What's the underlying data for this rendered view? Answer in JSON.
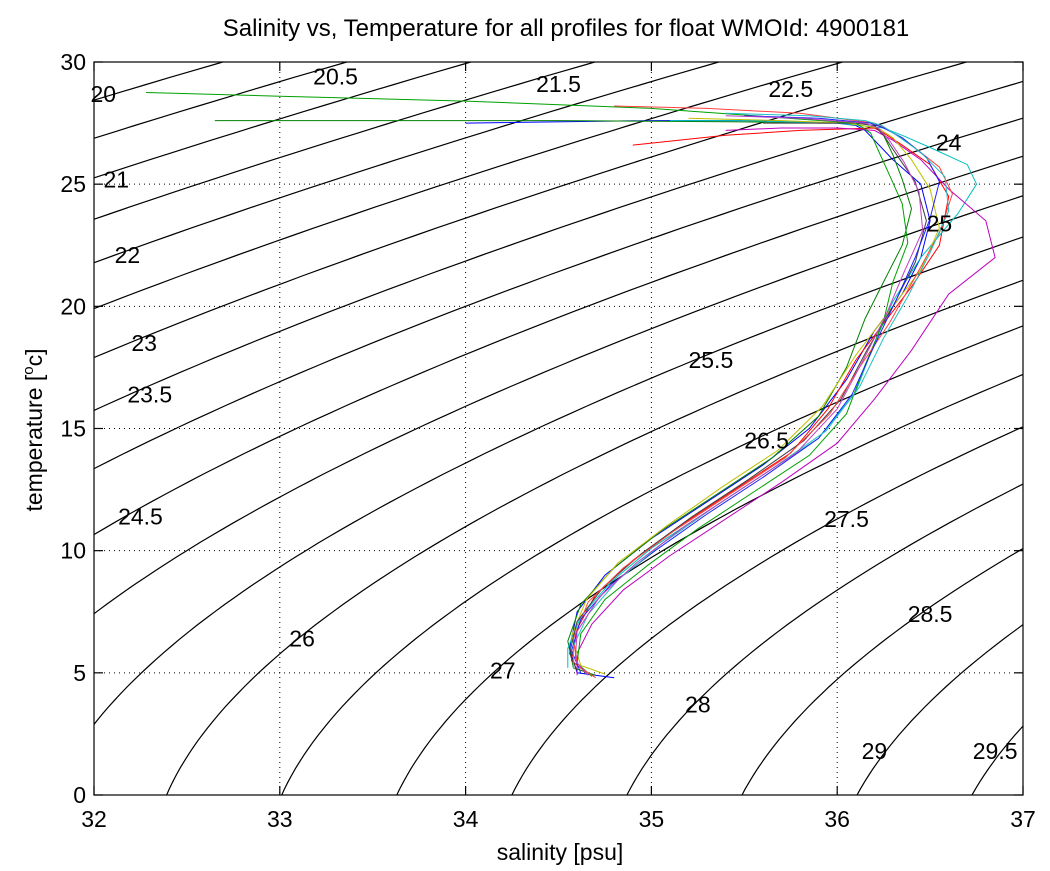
{
  "chart_data": {
    "type": "line",
    "title": "Salinity vs, Temperature for all profiles for float WMOId: 4900181",
    "xlabel": "salinity [psu]",
    "ylabel_main": "temperature [",
    "ylabel_sup": "o",
    "ylabel_end": "c]",
    "xlim": [
      32,
      37
    ],
    "ylim": [
      0,
      30
    ],
    "xticks": [
      32,
      33,
      34,
      35,
      36,
      37
    ],
    "yticks": [
      0,
      5,
      10,
      15,
      20,
      25,
      30
    ],
    "grid": true,
    "contours": {
      "levels": [
        20,
        20.5,
        21,
        21.5,
        22,
        22.5,
        23,
        23.5,
        24,
        24.5,
        25,
        25.5,
        26,
        26.5,
        27,
        27.5,
        28,
        28.5,
        29,
        29.5
      ],
      "labels": [
        {
          "text": "20",
          "s": 32.05,
          "t": 28.7
        },
        {
          "text": "20.5",
          "s": 33.3,
          "t": 29.4
        },
        {
          "text": "21",
          "s": 32.12,
          "t": 25.2
        },
        {
          "text": "21.5",
          "s": 34.5,
          "t": 29.1
        },
        {
          "text": "22",
          "s": 32.18,
          "t": 22.1
        },
        {
          "text": "22.5",
          "s": 35.75,
          "t": 28.9
        },
        {
          "text": "23",
          "s": 32.27,
          "t": 18.5
        },
        {
          "text": "23.5",
          "s": 32.3,
          "t": 16.4
        },
        {
          "text": "24",
          "s": 36.6,
          "t": 26.7
        },
        {
          "text": "24.5",
          "s": 32.25,
          "t": 11.4
        },
        {
          "text": "25",
          "s": 36.55,
          "t": 23.4
        },
        {
          "text": "25.5",
          "s": 35.32,
          "t": 17.8
        },
        {
          "text": "26",
          "s": 33.12,
          "t": 6.4
        },
        {
          "text": "26.5",
          "s": 35.62,
          "t": 14.5
        },
        {
          "text": "27",
          "s": 34.2,
          "t": 5.1
        },
        {
          "text": "27.5",
          "s": 36.05,
          "t": 11.3
        },
        {
          "text": "28",
          "s": 35.25,
          "t": 3.7
        },
        {
          "text": "28.5",
          "s": 36.5,
          "t": 7.4
        },
        {
          "text": "29",
          "s": 36.2,
          "t": 1.8
        },
        {
          "text": "29.5",
          "s": 36.85,
          "t": 1.8
        }
      ]
    },
    "series": [
      {
        "color": "#0000ff",
        "s": [
          34.8,
          34.6,
          34.56,
          34.6,
          34.75,
          35.0,
          35.3,
          35.6,
          35.85,
          36.05,
          36.2,
          36.35,
          36.45,
          36.5,
          36.45,
          36.3,
          36.2,
          36.15,
          36.1,
          36.0,
          35.9,
          35.6,
          35.0,
          34.0
        ],
        "t": [
          4.8,
          5.0,
          6.0,
          7.5,
          9.0,
          10.5,
          12.0,
          13.5,
          15.0,
          17.0,
          19.0,
          20.5,
          22.0,
          23.5,
          25.0,
          26.0,
          26.8,
          27.2,
          27.4,
          27.5,
          27.5,
          27.6,
          27.6,
          27.5
        ]
      },
      {
        "color": "#008000",
        "s": [
          34.7,
          34.58,
          34.55,
          34.62,
          34.8,
          35.05,
          35.35,
          35.65,
          35.9,
          36.05,
          36.15,
          36.25,
          36.35,
          36.4,
          36.35,
          36.3,
          36.25,
          36.2,
          36.1,
          35.5,
          34.5,
          33.5,
          32.65
        ],
        "t": [
          4.9,
          5.2,
          6.3,
          7.8,
          9.3,
          10.8,
          12.3,
          13.8,
          15.5,
          17.5,
          19.5,
          21.0,
          22.5,
          24.0,
          25.2,
          26.2,
          27.0,
          27.4,
          27.5,
          27.55,
          27.6,
          27.6,
          27.6
        ]
      },
      {
        "color": "#ff0000",
        "s": [
          34.65,
          34.57,
          34.6,
          34.7,
          34.9,
          35.15,
          35.45,
          35.75,
          35.95,
          36.1,
          36.25,
          36.4,
          36.55,
          36.6,
          36.5,
          36.35,
          36.25,
          36.2,
          35.8,
          35.4,
          34.9
        ],
        "t": [
          5.0,
          5.5,
          6.8,
          8.2,
          9.6,
          11.0,
          12.5,
          14.0,
          15.8,
          17.8,
          19.3,
          20.8,
          22.5,
          24.5,
          25.8,
          26.6,
          27.1,
          27.3,
          27.2,
          27.0,
          26.6
        ]
      },
      {
        "color": "#00bfbf",
        "s": [
          34.55,
          34.55,
          34.62,
          34.78,
          35.0,
          35.3,
          35.6,
          35.9,
          36.1,
          36.2,
          36.3,
          36.45,
          36.65,
          36.75,
          36.7,
          36.5,
          36.35,
          36.25,
          36.0,
          35.5,
          35.1
        ],
        "t": [
          5.2,
          6.0,
          7.3,
          8.7,
          10.1,
          11.6,
          13.1,
          14.6,
          16.5,
          18.5,
          20.2,
          22.0,
          23.8,
          25.0,
          25.8,
          26.5,
          27.0,
          27.3,
          27.5,
          27.6,
          27.6
        ]
      },
      {
        "color": "#bf00bf",
        "s": [
          34.6,
          34.6,
          34.68,
          34.85,
          35.1,
          35.4,
          35.7,
          36.0,
          36.2,
          36.4,
          36.6,
          36.85,
          36.8,
          36.6,
          36.45,
          36.3,
          36.2,
          36.0,
          35.7,
          35.4
        ],
        "t": [
          4.9,
          5.8,
          7.0,
          8.4,
          9.8,
          11.3,
          12.8,
          14.4,
          16.2,
          18.2,
          20.5,
          22.0,
          23.5,
          24.8,
          26.0,
          26.8,
          27.2,
          27.3,
          27.3,
          27.2
        ]
      },
      {
        "color": "#bfbf00",
        "s": [
          34.75,
          34.62,
          34.57,
          34.65,
          34.82,
          35.08,
          35.38,
          35.68,
          35.92,
          36.1,
          36.28,
          36.45,
          36.55,
          36.5,
          36.4,
          36.3,
          36.22,
          36.05,
          35.7,
          35.2
        ],
        "t": [
          4.95,
          5.3,
          6.5,
          8.0,
          9.5,
          11.0,
          12.6,
          14.1,
          15.9,
          18.0,
          19.8,
          21.5,
          23.2,
          24.8,
          26.0,
          26.9,
          27.3,
          27.5,
          27.6,
          27.7
        ]
      },
      {
        "color": "#404040",
        "s": [
          34.6,
          34.56,
          34.6,
          34.74,
          34.95,
          35.22,
          35.52,
          35.82,
          36.02,
          36.16,
          36.3,
          36.42,
          36.48,
          36.42,
          36.32,
          36.25,
          36.2,
          36.1,
          35.9,
          35.6
        ],
        "t": [
          5.1,
          5.8,
          7.1,
          8.5,
          9.9,
          11.4,
          12.9,
          14.5,
          16.2,
          18.2,
          20.0,
          21.8,
          23.5,
          25.1,
          26.2,
          27.0,
          27.4,
          27.5,
          27.5,
          27.5
        ]
      },
      {
        "color": "#00a000",
        "s": [
          34.68,
          34.6,
          34.62,
          34.75,
          34.98,
          35.25,
          35.55,
          35.85,
          36.05,
          36.15,
          36.25,
          36.3,
          36.38,
          36.35,
          36.28,
          36.22,
          36.18,
          36.1,
          35.0,
          34.0,
          33.0,
          32.28
        ],
        "t": [
          4.85,
          5.4,
          6.6,
          8.0,
          9.4,
          10.9,
          12.4,
          13.9,
          15.6,
          17.6,
          19.4,
          21.0,
          22.6,
          24.2,
          25.4,
          26.4,
          27.1,
          27.5,
          28.1,
          28.4,
          28.6,
          28.75
        ]
      },
      {
        "color": "#ff4040",
        "s": [
          34.7,
          34.6,
          34.58,
          34.66,
          34.85,
          35.12,
          35.42,
          35.72,
          35.96,
          36.12,
          36.28,
          36.42,
          36.55,
          36.62,
          36.55,
          36.4,
          36.28,
          36.2,
          35.8,
          35.3,
          34.8
        ],
        "t": [
          4.8,
          5.3,
          6.4,
          7.9,
          9.3,
          10.8,
          12.3,
          13.8,
          15.6,
          17.5,
          19.3,
          21.2,
          23.0,
          24.6,
          25.7,
          26.6,
          27.2,
          27.5,
          27.9,
          28.1,
          28.2
        ]
      },
      {
        "color": "#2020ff",
        "s": [
          34.62,
          34.57,
          34.62,
          34.78,
          35.02,
          35.3,
          35.6,
          35.9,
          36.08,
          36.2,
          36.32,
          36.42,
          36.5,
          36.55,
          36.48,
          36.35,
          36.25,
          36.18,
          35.9,
          35.5
        ],
        "t": [
          5.0,
          5.9,
          7.2,
          8.6,
          10.0,
          11.5,
          13.0,
          14.6,
          16.4,
          18.4,
          20.3,
          22.0,
          23.6,
          25.1,
          26.1,
          26.9,
          27.3,
          27.5,
          27.7,
          27.8
        ]
      },
      {
        "color": "#20c0c0",
        "s": [
          34.58,
          34.58,
          34.66,
          34.82,
          35.06,
          35.34,
          35.64,
          35.94,
          36.12,
          36.25,
          36.38,
          36.5,
          36.6,
          36.58,
          36.45,
          36.32,
          36.24,
          36.15,
          35.85,
          35.4
        ],
        "t": [
          5.2,
          6.1,
          7.4,
          8.8,
          10.3,
          11.8,
          13.3,
          14.9,
          16.7,
          18.7,
          20.4,
          22.2,
          23.9,
          25.3,
          26.3,
          27.0,
          27.4,
          27.6,
          27.8,
          27.9
        ]
      },
      {
        "color": "#c040c0",
        "s": [
          34.66,
          34.59,
          34.6,
          34.72,
          34.92,
          35.18,
          35.48,
          35.78,
          36.0,
          36.14,
          36.26,
          36.36,
          36.46,
          36.44,
          36.36,
          36.28,
          36.22,
          36.15,
          35.8,
          35.4
        ],
        "t": [
          4.9,
          5.5,
          6.7,
          8.1,
          9.5,
          11.0,
          12.5,
          14.0,
          15.8,
          17.8,
          19.6,
          21.4,
          23.1,
          24.7,
          25.9,
          26.8,
          27.3,
          27.5,
          27.7,
          27.8
        ]
      }
    ]
  }
}
